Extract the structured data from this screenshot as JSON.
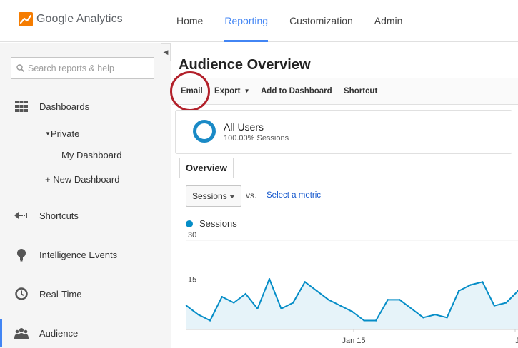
{
  "header": {
    "app_name": "Google Analytics",
    "nav": [
      {
        "label": "Home",
        "active": false
      },
      {
        "label": "Reporting",
        "active": true
      },
      {
        "label": "Customization",
        "active": false
      },
      {
        "label": "Admin",
        "active": false
      }
    ],
    "accent_color": "#4285f4"
  },
  "sidebar": {
    "search_placeholder": "Search reports & help",
    "items": [
      {
        "label": "Dashboards",
        "icon": "grid-icon"
      },
      {
        "label": "Shortcuts",
        "icon": "shortcut-arrow-icon"
      },
      {
        "label": "Intelligence Events",
        "icon": "lightbulb-icon"
      },
      {
        "label": "Real-Time",
        "icon": "clock-icon"
      },
      {
        "label": "Audience",
        "icon": "people-icon",
        "active": true
      }
    ],
    "dashboards_sub": {
      "private": "Private",
      "my_dashboard": "My Dashboard",
      "new_dashboard": "+ New Dashboard"
    }
  },
  "main": {
    "title": "Audience Overview",
    "toolbar": {
      "email": "Email",
      "export": "Export",
      "add_to_dashboard": "Add to Dashboard",
      "shortcut": "Shortcut"
    },
    "segment": {
      "name": "All Users",
      "sub": "100.00% Sessions",
      "color": "#1a8ac6"
    },
    "tab": "Overview",
    "metric_select": "Sessions",
    "vs": "vs.",
    "select_metric": "Select a metric",
    "legend": "Sessions"
  },
  "chart_data": {
    "type": "area",
    "series": [
      {
        "name": "Sessions",
        "color": "#058dc7",
        "values": [
          8,
          5,
          3,
          11,
          9,
          12,
          7,
          17,
          7,
          9,
          16,
          13,
          10,
          8,
          6,
          3,
          3,
          10,
          10,
          7,
          4,
          5,
          4,
          13,
          15,
          16,
          8,
          9,
          13
        ]
      }
    ],
    "ylim": [
      0,
      30
    ],
    "yticks": [
      "30",
      "15"
    ],
    "xticks": [
      "Jan 15",
      "Jan"
    ],
    "grid": true
  }
}
